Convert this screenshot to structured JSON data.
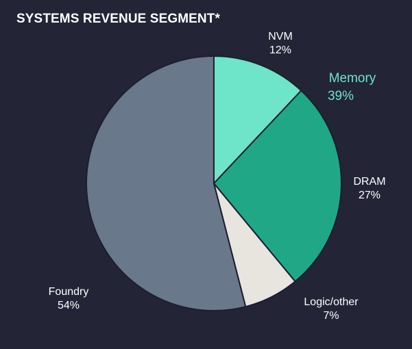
{
  "chart_data": {
    "type": "pie",
    "title": "SYSTEMS REVENUE SEGMENT*",
    "slices": [
      {
        "name": "NVM",
        "value": 12,
        "pct_label": "12%",
        "color": "#6ee4c8"
      },
      {
        "name": "DRAM",
        "value": 27,
        "pct_label": "27%",
        "color": "#20a886"
      },
      {
        "name": "Logic/other",
        "value": 7,
        "pct_label": "7%",
        "color": "#e8e5df"
      },
      {
        "name": "Foundry",
        "value": 54,
        "pct_label": "54%",
        "color": "#69788a"
      }
    ],
    "group_annotation": {
      "name": "Memory",
      "pct_label": "39%",
      "members": [
        "NVM",
        "DRAM"
      ],
      "color": "#6ee4c8"
    },
    "label_color": "#ffffff",
    "border_color": "#1c1e2e",
    "background": "#232537"
  }
}
